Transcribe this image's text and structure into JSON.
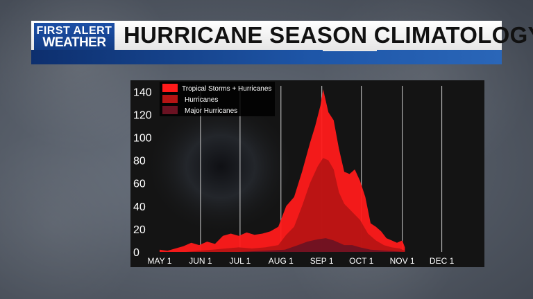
{
  "header": {
    "logo_line1": "FIRST ALERT",
    "logo_line2": "WEATHER",
    "title": "HURRICANE SEASON CLIMATOLOGY"
  },
  "colors": {
    "ts": "#ff1a1a",
    "hurricanes": "#b51414",
    "major": "#6a1222",
    "banner_blue": "#1e56a8"
  },
  "chart_data": {
    "type": "area",
    "x_ticks": [
      "MAY 1",
      "JUN 1",
      "JUL 1",
      "AUG 1",
      "SEP 1",
      "OCT 1",
      "NOV 1",
      "DEC 1"
    ],
    "y_ticks": [
      0,
      20,
      40,
      60,
      80,
      100,
      120,
      140
    ],
    "ylim": [
      0,
      145
    ],
    "legend_position": "top-left",
    "grid": true,
    "series": [
      {
        "name": "Tropical Storms + Hurricanes",
        "color": "#ff1a1a",
        "values": [
          [
            0,
            2
          ],
          [
            6,
            1
          ],
          [
            12,
            3
          ],
          [
            18,
            5
          ],
          [
            24,
            8
          ],
          [
            30,
            6
          ],
          [
            36,
            9
          ],
          [
            42,
            7
          ],
          [
            48,
            14
          ],
          [
            54,
            16
          ],
          [
            60,
            14
          ],
          [
            66,
            17
          ],
          [
            72,
            15
          ],
          [
            78,
            16
          ],
          [
            84,
            18
          ],
          [
            90,
            22
          ],
          [
            96,
            40
          ],
          [
            102,
            48
          ],
          [
            108,
            70
          ],
          [
            114,
            95
          ],
          [
            118,
            110
          ],
          [
            122,
            128
          ],
          [
            124,
            142
          ],
          [
            126,
            132
          ],
          [
            128,
            122
          ],
          [
            132,
            115
          ],
          [
            136,
            90
          ],
          [
            140,
            70
          ],
          [
            144,
            68
          ],
          [
            148,
            72
          ],
          [
            152,
            62
          ],
          [
            156,
            48
          ],
          [
            160,
            25
          ],
          [
            164,
            22
          ],
          [
            168,
            18
          ],
          [
            172,
            12
          ],
          [
            176,
            10
          ],
          [
            180,
            8
          ],
          [
            184,
            10
          ],
          [
            186,
            4
          ]
        ]
      },
      {
        "name": "Hurricanes",
        "color": "#b51414",
        "values": [
          [
            0,
            0
          ],
          [
            20,
            0
          ],
          [
            30,
            1
          ],
          [
            40,
            2
          ],
          [
            50,
            3
          ],
          [
            60,
            4
          ],
          [
            70,
            3
          ],
          [
            80,
            4
          ],
          [
            90,
            6
          ],
          [
            96,
            15
          ],
          [
            102,
            22
          ],
          [
            108,
            40
          ],
          [
            114,
            60
          ],
          [
            120,
            75
          ],
          [
            124,
            82
          ],
          [
            128,
            80
          ],
          [
            132,
            72
          ],
          [
            136,
            52
          ],
          [
            140,
            42
          ],
          [
            146,
            35
          ],
          [
            152,
            28
          ],
          [
            158,
            16
          ],
          [
            164,
            10
          ],
          [
            170,
            6
          ],
          [
            176,
            4
          ],
          [
            182,
            3
          ],
          [
            186,
            1
          ]
        ]
      },
      {
        "name": "Major Hurricanes",
        "color": "#6a1222",
        "values": [
          [
            0,
            0
          ],
          [
            60,
            0
          ],
          [
            80,
            1
          ],
          [
            95,
            2
          ],
          [
            105,
            6
          ],
          [
            112,
            9
          ],
          [
            120,
            11
          ],
          [
            126,
            12
          ],
          [
            132,
            10
          ],
          [
            140,
            6
          ],
          [
            146,
            6
          ],
          [
            152,
            4
          ],
          [
            160,
            2
          ],
          [
            172,
            1
          ],
          [
            186,
            0
          ]
        ]
      }
    ]
  }
}
